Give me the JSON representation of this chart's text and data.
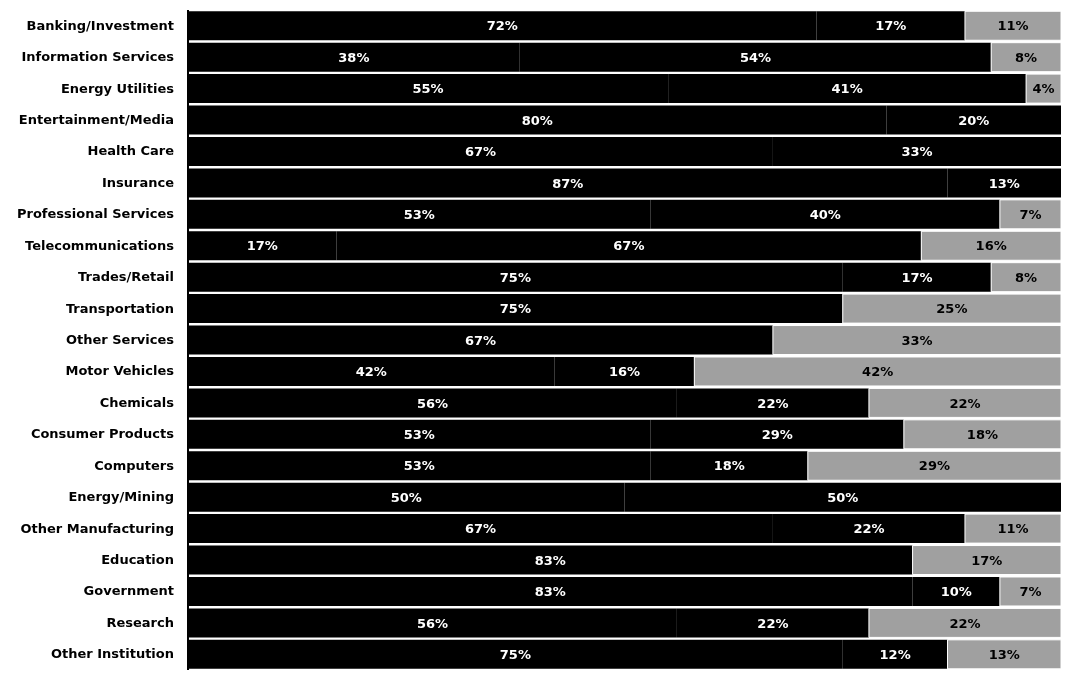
{
  "chart_data": {
    "type": "bar",
    "orientation": "horizontal",
    "stacked": true,
    "tick_labels": "y",
    "grid": false,
    "legend": false,
    "xlim": [
      0,
      100
    ],
    "categories": [
      "Banking/Investment",
      "Information Services",
      "Energy Utilities",
      "Entertainment/Media",
      "Health Care",
      "Insurance",
      "Professional Services",
      "Telecommunications",
      "Trades/Retail",
      "Transportation",
      "Other Services",
      "Motor Vehicles",
      "Chemicals",
      "Consumer Products",
      "Computers",
      "Energy/Mining",
      "Other Manufacturing",
      "Education",
      "Government",
      "Research",
      "Other Institution"
    ],
    "series": [
      {
        "color": "#000000",
        "values": [
          72,
          38,
          55,
          80,
          67,
          87,
          53,
          17,
          75,
          75,
          67,
          42,
          56,
          53,
          53,
          50,
          67,
          83,
          83,
          56,
          75
        ],
        "value_labels": [
          "72%",
          "38%",
          "55%",
          "80%",
          "67%",
          "87%",
          "53%",
          "17%",
          "75%",
          "75%",
          "67%",
          "42%",
          "56%",
          "53%",
          "53%",
          "50%",
          "67%",
          "83%",
          "83%",
          "56%",
          "75%"
        ]
      },
      {
        "color": "#000000",
        "values": [
          17,
          54,
          41,
          20,
          33,
          13,
          40,
          67,
          17,
          null,
          null,
          16,
          22,
          29,
          18,
          50,
          22,
          null,
          10,
          22,
          12
        ],
        "value_labels": [
          "17%",
          "54%",
          "41%",
          "20%",
          "33%",
          "13%",
          "40%",
          "67%",
          "17%",
          null,
          null,
          "16%",
          "22%",
          "29%",
          "18%",
          "50%",
          "22%",
          null,
          "10%",
          "22%",
          "12%"
        ]
      },
      {
        "color": "#a0a0a0",
        "values": [
          11,
          8,
          4,
          null,
          null,
          null,
          7,
          16,
          8,
          25,
          33,
          42,
          22,
          18,
          29,
          null,
          11,
          17,
          7,
          22,
          13
        ],
        "value_labels": [
          "11%",
          "8%",
          "4%",
          null,
          null,
          null,
          "7%",
          "16%",
          "8%",
          "25%",
          "33%",
          "42%",
          "22%",
          "18%",
          "29%",
          null,
          "11%",
          "17%",
          "7%",
          "22%",
          "13%"
        ]
      }
    ]
  }
}
